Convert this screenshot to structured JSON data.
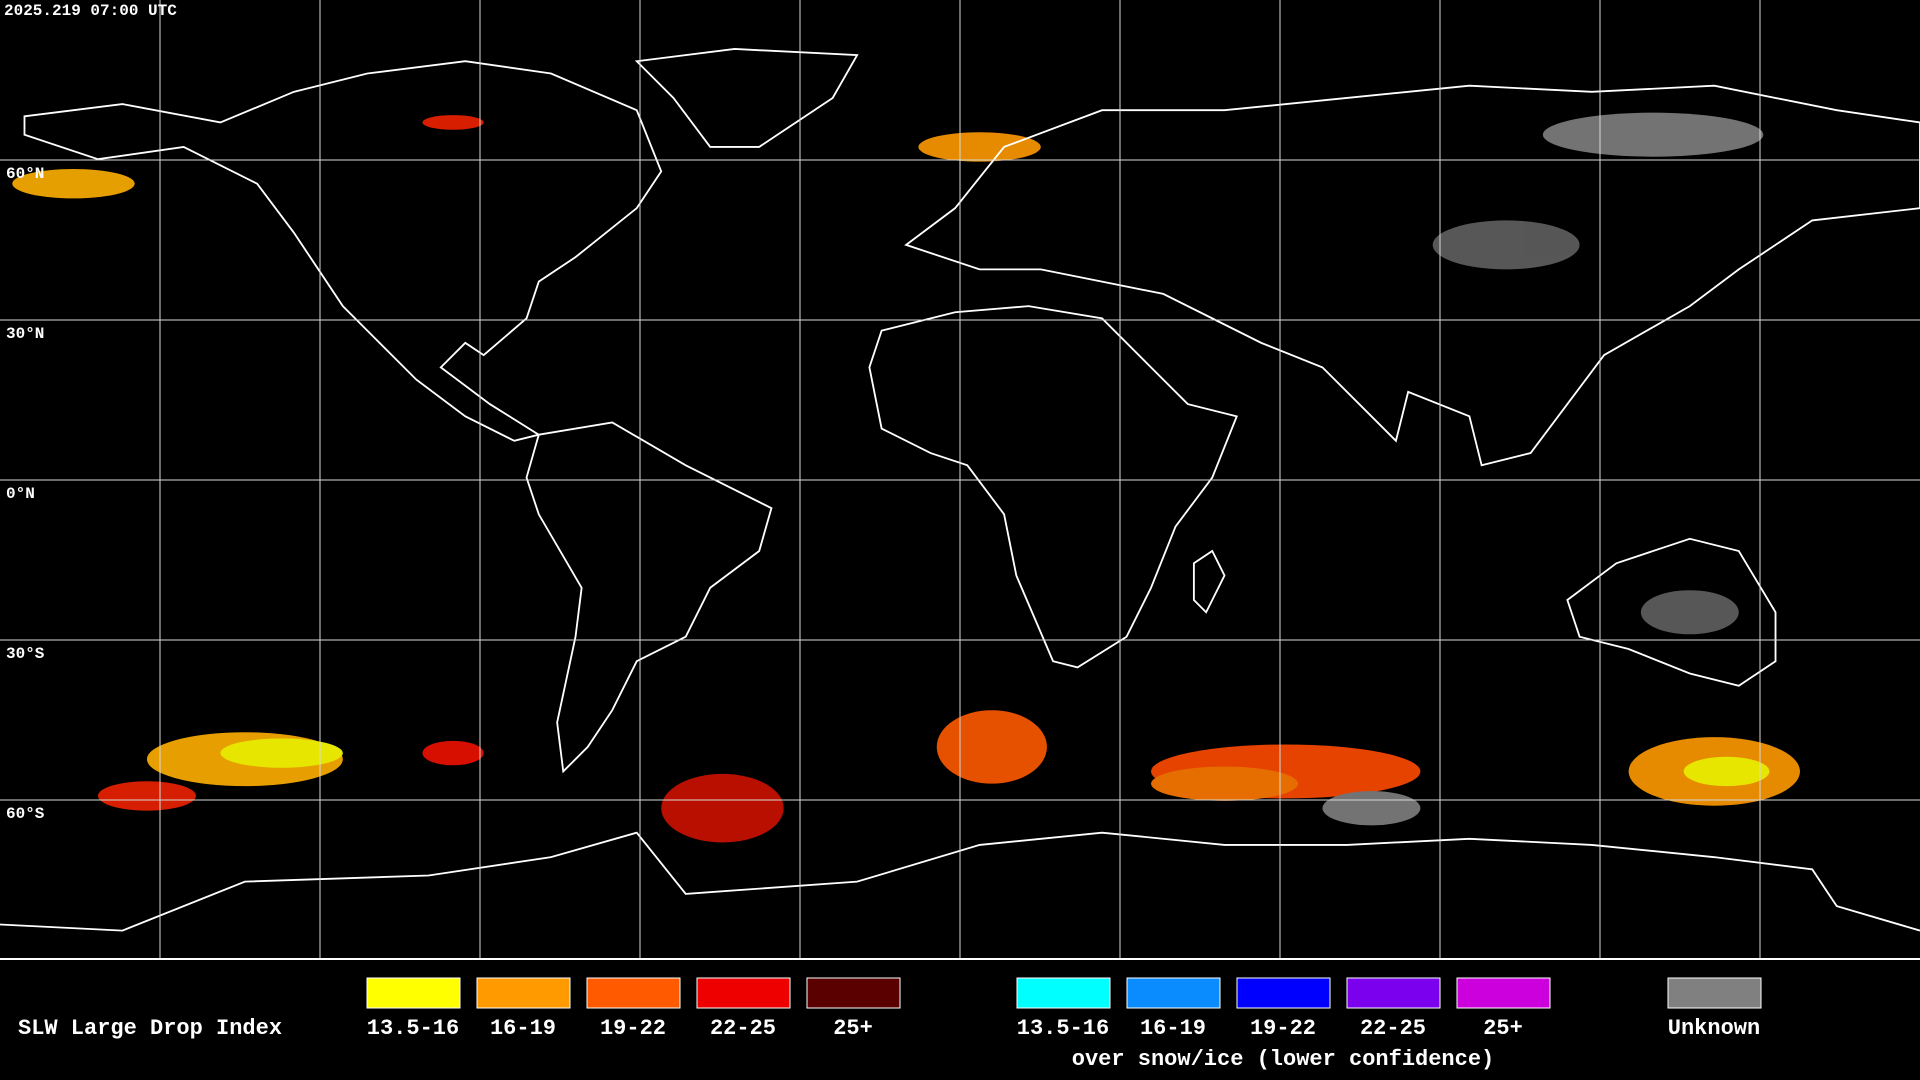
{
  "header": {
    "timestamp": "2025.219 07:00 UTC"
  },
  "map": {
    "latitude_labels": [
      "60°N",
      "30°N",
      "0°N",
      "30°S",
      "60°S"
    ]
  },
  "legend": {
    "title": "SLW Large Drop Index",
    "items": [
      {
        "label": "13.5-16",
        "color": "#ffff00"
      },
      {
        "label": "16-19",
        "color": "#ff9a00"
      },
      {
        "label": "19-22",
        "color": "#ff5a00"
      },
      {
        "label": "22-25",
        "color": "#ee0000"
      },
      {
        "label": "25+",
        "color": "#5a0000"
      }
    ],
    "snow_ice_items": [
      {
        "label": "13.5-16",
        "color": "#00ffff"
      },
      {
        "label": "16-19",
        "color": "#0a8cff"
      },
      {
        "label": "19-22",
        "color": "#0000ff"
      },
      {
        "label": "22-25",
        "color": "#7a00ee"
      },
      {
        "label": "25+",
        "color": "#cc00dd"
      }
    ],
    "snow_ice_caption": "over snow/ice (lower confidence)",
    "unknown": {
      "label": "Unknown",
      "color": "#808080"
    }
  }
}
